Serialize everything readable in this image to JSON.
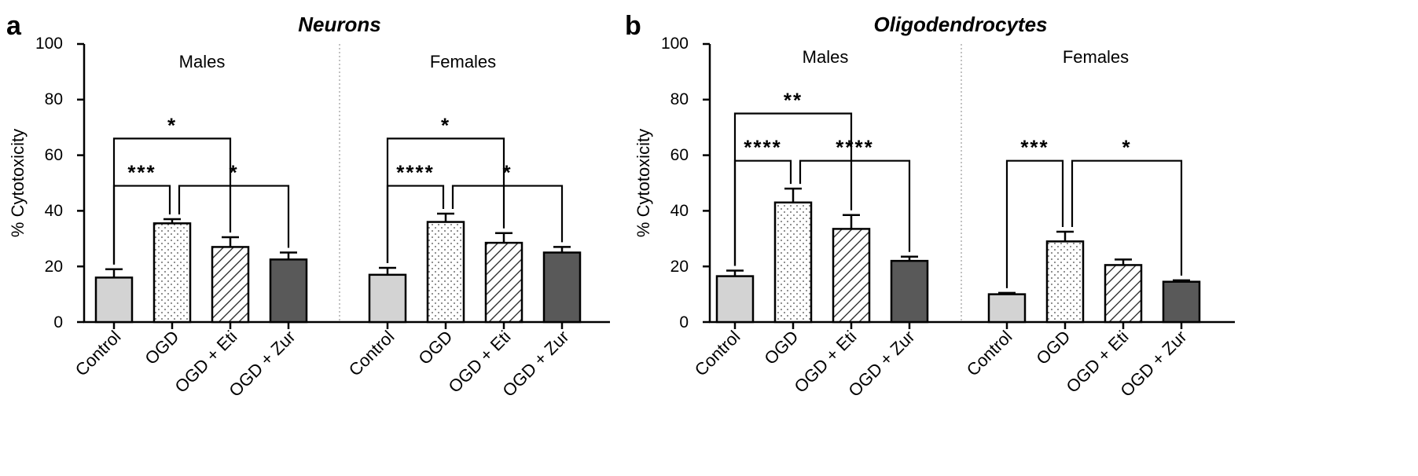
{
  "figure_labels": {
    "panel_a": "a",
    "panel_b": "b"
  },
  "chart_data": [
    {
      "type": "bar",
      "panel": "a",
      "title": "Neurons",
      "xlabel": "",
      "ylabel": "% Cytotoxicity",
      "ylim": [
        0,
        100
      ],
      "yticks": [
        "0",
        "20",
        "40",
        "60",
        "80",
        "100"
      ],
      "grid": false,
      "groups": [
        {
          "name": "Males",
          "categories": [
            "Control",
            "OGD",
            "OGD + Eti",
            "OGD + Zur"
          ],
          "values": [
            16,
            35.5,
            27,
            22.5
          ],
          "errors": [
            3,
            1.5,
            3.5,
            2.5
          ],
          "brackets": [
            {
              "from": 0,
              "to": 2,
              "level": 66,
              "label": "*"
            },
            {
              "from": 0,
              "to": 1,
              "level": 49,
              "label": "***"
            },
            {
              "from": 1,
              "to": 3,
              "level": 49,
              "label": "*"
            }
          ]
        },
        {
          "name": "Females",
          "categories": [
            "Control",
            "OGD",
            "OGD + Eti",
            "OGD + Zur"
          ],
          "values": [
            17,
            36,
            28.5,
            25
          ],
          "errors": [
            2.5,
            3,
            3.5,
            2
          ],
          "brackets": [
            {
              "from": 0,
              "to": 2,
              "level": 66,
              "label": "*"
            },
            {
              "from": 0,
              "to": 1,
              "level": 49,
              "label": "****"
            },
            {
              "from": 1,
              "to": 3,
              "level": 49,
              "label": "*"
            }
          ]
        }
      ],
      "fills": [
        "#d3d3d3",
        "dots",
        "hatch",
        "#595959"
      ]
    },
    {
      "type": "bar",
      "panel": "b",
      "title": "Oligodendrocytes",
      "xlabel": "",
      "ylabel": "% Cytotoxicity",
      "ylim": [
        0,
        100
      ],
      "yticks": [
        "0",
        "20",
        "40",
        "60",
        "80",
        "100"
      ],
      "grid": false,
      "groups": [
        {
          "name": "Males",
          "categories": [
            "Control",
            "OGD",
            "OGD + Eti",
            "OGD + Zur"
          ],
          "values": [
            16.5,
            43,
            33.5,
            22
          ],
          "errors": [
            2,
            5,
            5,
            1.5
          ],
          "brackets": [
            {
              "from": 0,
              "to": 2,
              "level": 75,
              "label": "**"
            },
            {
              "from": 0,
              "to": 1,
              "level": 58,
              "label": "****"
            },
            {
              "from": 1,
              "to": 3,
              "level": 58,
              "label": "****"
            }
          ]
        },
        {
          "name": "Females",
          "categories": [
            "Control",
            "OGD",
            "OGD + Eti",
            "OGD + Zur"
          ],
          "values": [
            10,
            29,
            20.5,
            14.5
          ],
          "errors": [
            0.5,
            3.5,
            2,
            0.5
          ],
          "brackets": [
            {
              "from": 0,
              "to": 1,
              "level": 58,
              "label": "***"
            },
            {
              "from": 1,
              "to": 3,
              "level": 58,
              "label": "*"
            }
          ]
        }
      ],
      "fills": [
        "#d3d3d3",
        "dots",
        "hatch",
        "#595959"
      ]
    }
  ]
}
